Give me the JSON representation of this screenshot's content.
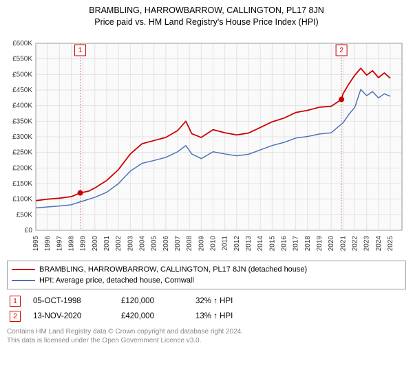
{
  "title": "BRAMBLING, HARROWBARROW, CALLINGTON, PL17 8JN",
  "subtitle": "Price paid vs. HM Land Registry's House Price Index (HPI)",
  "chart": {
    "type": "line",
    "background_color": "#ffffff",
    "plot_bg_color": "#fafafa",
    "grid_color": "#e2e2e2",
    "axis_color": "#888888",
    "title_fontsize": 12.5,
    "label_fontsize": 10,
    "y": {
      "min": 0,
      "max": 600000,
      "step": 50000,
      "labels": [
        "£0",
        "£50K",
        "£100K",
        "£150K",
        "£200K",
        "£250K",
        "£300K",
        "£350K",
        "£400K",
        "£450K",
        "£500K",
        "£550K",
        "£600K"
      ]
    },
    "x": {
      "min": 1995,
      "max": 2025.99,
      "ticks": [
        1995,
        1996,
        1997,
        1998,
        1999,
        2000,
        2001,
        2002,
        2003,
        2004,
        2005,
        2006,
        2007,
        2008,
        2009,
        2010,
        2011,
        2012,
        2013,
        2014,
        2015,
        2016,
        2017,
        2018,
        2019,
        2020,
        2021,
        2022,
        2023,
        2024,
        2025
      ]
    },
    "series": [
      {
        "name": "brambling",
        "label": "BRAMBLING, HARROWBARROW, CALLINGTON, PL17 8JN (detached house)",
        "color": "#cc0000",
        "line_width": 1.8,
        "points": [
          [
            1995,
            95000
          ],
          [
            1996,
            100000
          ],
          [
            1997,
            103000
          ],
          [
            1998,
            108000
          ],
          [
            1998.76,
            120000
          ],
          [
            1999.5,
            126000
          ],
          [
            2000,
            136000
          ],
          [
            2001,
            160000
          ],
          [
            2002,
            195000
          ],
          [
            2003,
            245000
          ],
          [
            2004,
            278000
          ],
          [
            2005,
            288000
          ],
          [
            2006,
            298000
          ],
          [
            2007,
            320000
          ],
          [
            2007.7,
            350000
          ],
          [
            2008.2,
            310000
          ],
          [
            2009,
            298000
          ],
          [
            2010,
            323000
          ],
          [
            2011,
            313000
          ],
          [
            2012,
            306000
          ],
          [
            2013,
            312000
          ],
          [
            2014,
            330000
          ],
          [
            2015,
            348000
          ],
          [
            2016,
            360000
          ],
          [
            2017,
            378000
          ],
          [
            2018,
            385000
          ],
          [
            2019,
            395000
          ],
          [
            2020,
            398000
          ],
          [
            2020.87,
            420000
          ],
          [
            2021,
            438000
          ],
          [
            2021.5,
            470000
          ],
          [
            2022,
            498000
          ],
          [
            2022.5,
            520000
          ],
          [
            2023,
            498000
          ],
          [
            2023.5,
            512000
          ],
          [
            2024,
            490000
          ],
          [
            2024.5,
            505000
          ],
          [
            2025,
            488000
          ]
        ]
      },
      {
        "name": "hpi",
        "label": "HPI: Average price, detached house, Cornwall",
        "color": "#4a74b8",
        "line_width": 1.5,
        "points": [
          [
            1995,
            72000
          ],
          [
            1996,
            75000
          ],
          [
            1997,
            78000
          ],
          [
            1998,
            82000
          ],
          [
            1999,
            94000
          ],
          [
            2000,
            106000
          ],
          [
            2001,
            122000
          ],
          [
            2002,
            150000
          ],
          [
            2003,
            190000
          ],
          [
            2004,
            215000
          ],
          [
            2005,
            224000
          ],
          [
            2006,
            234000
          ],
          [
            2007,
            252000
          ],
          [
            2007.7,
            272000
          ],
          [
            2008.2,
            245000
          ],
          [
            2009,
            230000
          ],
          [
            2010,
            252000
          ],
          [
            2011,
            245000
          ],
          [
            2012,
            239000
          ],
          [
            2013,
            244000
          ],
          [
            2014,
            258000
          ],
          [
            2015,
            272000
          ],
          [
            2016,
            282000
          ],
          [
            2017,
            296000
          ],
          [
            2018,
            301000
          ],
          [
            2019,
            309000
          ],
          [
            2020,
            313000
          ],
          [
            2021,
            345000
          ],
          [
            2021.5,
            372000
          ],
          [
            2022,
            395000
          ],
          [
            2022.5,
            452000
          ],
          [
            2023,
            432000
          ],
          [
            2023.5,
            445000
          ],
          [
            2024,
            425000
          ],
          [
            2024.5,
            438000
          ],
          [
            2025,
            430000
          ]
        ]
      }
    ],
    "markers": [
      {
        "num": "1",
        "x": 1998.76,
        "y": 120000,
        "label_y_top": true,
        "date": "05-OCT-1998",
        "price": "£120,000",
        "pct": "32% ↑ HPI",
        "box_color": "#cc0000"
      },
      {
        "num": "2",
        "x": 2020.87,
        "y": 420000,
        "label_y_top": true,
        "date": "13-NOV-2020",
        "price": "£420,000",
        "pct": "13% ↑ HPI",
        "box_color": "#cc0000"
      }
    ],
    "marker_line_color": "#d08888",
    "marker_dot_color": "#cc0000"
  },
  "footer": {
    "line1": "Contains HM Land Registry data © Crown copyright and database right 2024.",
    "line2": "This data is licensed under the Open Government Licence v3.0."
  }
}
